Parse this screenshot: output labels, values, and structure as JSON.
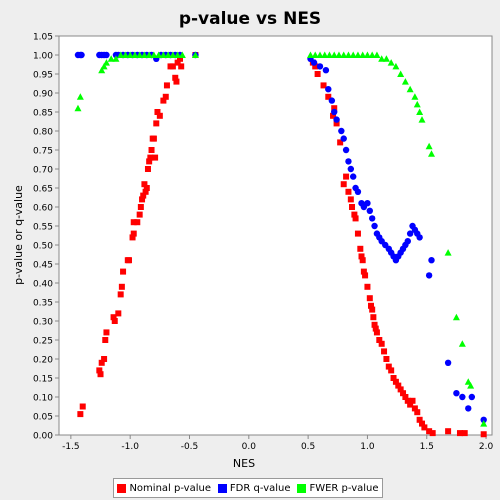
{
  "chart_data": {
    "type": "scatter",
    "title": "p-value vs NES",
    "xlabel": "NES",
    "ylabel": "p-value or q-value",
    "xlim": [
      -1.6,
      2.05
    ],
    "ylim": [
      0.0,
      1.05
    ],
    "xticks": [
      "-1.5",
      "-1.0",
      "-0.5",
      "0.0",
      "0.5",
      "1.0",
      "1.5",
      "2.0"
    ],
    "yticks": [
      "0.00",
      "0.05",
      "0.10",
      "0.15",
      "0.20",
      "0.25",
      "0.30",
      "0.35",
      "0.40",
      "0.45",
      "0.50",
      "0.55",
      "0.60",
      "0.65",
      "0.70",
      "0.75",
      "0.80",
      "0.85",
      "0.90",
      "0.95",
      "1.00",
      "1.05"
    ],
    "grid": false,
    "legend_position": "bottom",
    "series": [
      {
        "name": "Nominal p-value",
        "color": "#ff0000",
        "marker": "square",
        "points": [
          [
            -1.42,
            0.055
          ],
          [
            -1.4,
            0.075
          ],
          [
            -1.26,
            0.17
          ],
          [
            -1.25,
            0.16
          ],
          [
            -1.24,
            0.19
          ],
          [
            -1.22,
            0.2
          ],
          [
            -1.21,
            0.25
          ],
          [
            -1.2,
            0.27
          ],
          [
            -1.14,
            0.31
          ],
          [
            -1.13,
            0.3
          ],
          [
            -1.1,
            0.32
          ],
          [
            -1.08,
            0.37
          ],
          [
            -1.07,
            0.39
          ],
          [
            -1.06,
            0.43
          ],
          [
            -1.02,
            0.46
          ],
          [
            -1.01,
            0.46
          ],
          [
            -0.98,
            0.52
          ],
          [
            -0.97,
            0.53
          ],
          [
            -0.97,
            0.56
          ],
          [
            -0.94,
            0.56
          ],
          [
            -0.92,
            0.58
          ],
          [
            -0.91,
            0.6
          ],
          [
            -0.9,
            0.62
          ],
          [
            -0.89,
            0.63
          ],
          [
            -0.88,
            0.66
          ],
          [
            -0.87,
            0.64
          ],
          [
            -0.86,
            0.65
          ],
          [
            -0.85,
            0.7
          ],
          [
            -0.84,
            0.72
          ],
          [
            -0.83,
            0.73
          ],
          [
            -0.82,
            0.75
          ],
          [
            -0.81,
            0.78
          ],
          [
            -0.8,
            0.78
          ],
          [
            -0.79,
            0.73
          ],
          [
            -0.78,
            0.82
          ],
          [
            -0.77,
            0.85
          ],
          [
            -0.75,
            0.84
          ],
          [
            -0.72,
            0.88
          ],
          [
            -0.7,
            0.89
          ],
          [
            -0.69,
            0.92
          ],
          [
            -0.66,
            0.97
          ],
          [
            -0.64,
            0.97
          ],
          [
            -0.62,
            0.94
          ],
          [
            -0.61,
            0.93
          ],
          [
            -0.6,
            0.98
          ],
          [
            -0.58,
            0.99
          ],
          [
            -0.57,
            0.97
          ],
          [
            -0.45,
            1.0
          ],
          [
            0.54,
            0.98
          ],
          [
            0.56,
            0.97
          ],
          [
            0.58,
            0.95
          ],
          [
            0.63,
            0.92
          ],
          [
            0.67,
            0.89
          ],
          [
            0.71,
            0.84
          ],
          [
            0.72,
            0.86
          ],
          [
            0.74,
            0.82
          ],
          [
            0.77,
            0.77
          ],
          [
            0.8,
            0.66
          ],
          [
            0.82,
            0.68
          ],
          [
            0.84,
            0.64
          ],
          [
            0.86,
            0.62
          ],
          [
            0.87,
            0.6
          ],
          [
            0.89,
            0.58
          ],
          [
            0.9,
            0.57
          ],
          [
            0.92,
            0.53
          ],
          [
            0.94,
            0.49
          ],
          [
            0.95,
            0.47
          ],
          [
            0.96,
            0.46
          ],
          [
            0.97,
            0.43
          ],
          [
            0.98,
            0.42
          ],
          [
            1.0,
            0.39
          ],
          [
            1.02,
            0.36
          ],
          [
            1.03,
            0.34
          ],
          [
            1.04,
            0.33
          ],
          [
            1.05,
            0.31
          ],
          [
            1.06,
            0.29
          ],
          [
            1.07,
            0.28
          ],
          [
            1.08,
            0.27
          ],
          [
            1.1,
            0.25
          ],
          [
            1.12,
            0.24
          ],
          [
            1.14,
            0.22
          ],
          [
            1.16,
            0.2
          ],
          [
            1.18,
            0.18
          ],
          [
            1.2,
            0.17
          ],
          [
            1.22,
            0.15
          ],
          [
            1.24,
            0.14
          ],
          [
            1.26,
            0.13
          ],
          [
            1.28,
            0.12
          ],
          [
            1.3,
            0.11
          ],
          [
            1.32,
            0.1
          ],
          [
            1.34,
            0.09
          ],
          [
            1.36,
            0.08
          ],
          [
            1.38,
            0.09
          ],
          [
            1.4,
            0.07
          ],
          [
            1.42,
            0.06
          ],
          [
            1.44,
            0.04
          ],
          [
            1.46,
            0.03
          ],
          [
            1.48,
            0.02
          ],
          [
            1.52,
            0.01
          ],
          [
            1.55,
            0.005
          ],
          [
            1.68,
            0.01
          ],
          [
            1.78,
            0.005
          ],
          [
            1.82,
            0.005
          ],
          [
            1.98,
            0.002
          ]
        ]
      },
      {
        "name": "FDR q-value",
        "color": "#0000ff",
        "marker": "circle",
        "points": [
          [
            -1.44,
            1.0
          ],
          [
            -1.42,
            1.0
          ],
          [
            -1.41,
            1.0
          ],
          [
            -1.26,
            1.0
          ],
          [
            -1.24,
            1.0
          ],
          [
            -1.22,
            1.0
          ],
          [
            -1.2,
            1.0
          ],
          [
            -1.12,
            1.0
          ],
          [
            -1.1,
            1.0
          ],
          [
            -1.06,
            1.0
          ],
          [
            -1.02,
            1.0
          ],
          [
            -0.98,
            1.0
          ],
          [
            -0.94,
            1.0
          ],
          [
            -0.9,
            1.0
          ],
          [
            -0.86,
            1.0
          ],
          [
            -0.82,
            1.0
          ],
          [
            -0.78,
            0.99
          ],
          [
            -0.74,
            1.0
          ],
          [
            -0.7,
            1.0
          ],
          [
            -0.66,
            1.0
          ],
          [
            -0.62,
            1.0
          ],
          [
            -0.58,
            1.0
          ],
          [
            -0.45,
            1.0
          ],
          [
            0.52,
            0.99
          ],
          [
            0.55,
            0.98
          ],
          [
            0.6,
            0.97
          ],
          [
            0.65,
            0.96
          ],
          [
            0.67,
            0.91
          ],
          [
            0.7,
            0.88
          ],
          [
            0.72,
            0.85
          ],
          [
            0.74,
            0.83
          ],
          [
            0.78,
            0.8
          ],
          [
            0.8,
            0.78
          ],
          [
            0.82,
            0.75
          ],
          [
            0.84,
            0.72
          ],
          [
            0.86,
            0.7
          ],
          [
            0.88,
            0.68
          ],
          [
            0.9,
            0.65
          ],
          [
            0.92,
            0.64
          ],
          [
            0.95,
            0.61
          ],
          [
            0.97,
            0.6
          ],
          [
            1.0,
            0.61
          ],
          [
            1.02,
            0.59
          ],
          [
            1.04,
            0.57
          ],
          [
            1.06,
            0.55
          ],
          [
            1.08,
            0.53
          ],
          [
            1.1,
            0.52
          ],
          [
            1.12,
            0.51
          ],
          [
            1.15,
            0.5
          ],
          [
            1.18,
            0.49
          ],
          [
            1.2,
            0.48
          ],
          [
            1.22,
            0.47
          ],
          [
            1.24,
            0.46
          ],
          [
            1.26,
            0.47
          ],
          [
            1.28,
            0.48
          ],
          [
            1.3,
            0.49
          ],
          [
            1.32,
            0.5
          ],
          [
            1.34,
            0.51
          ],
          [
            1.36,
            0.53
          ],
          [
            1.38,
            0.55
          ],
          [
            1.4,
            0.54
          ],
          [
            1.42,
            0.53
          ],
          [
            1.44,
            0.52
          ],
          [
            1.52,
            0.42
          ],
          [
            1.54,
            0.46
          ],
          [
            1.68,
            0.19
          ],
          [
            1.75,
            0.11
          ],
          [
            1.8,
            0.1
          ],
          [
            1.85,
            0.07
          ],
          [
            1.88,
            0.1
          ],
          [
            1.98,
            0.04
          ]
        ]
      },
      {
        "name": "FWER p-value",
        "color": "#00ff00",
        "marker": "triangle",
        "points": [
          [
            -1.44,
            0.86
          ],
          [
            -1.42,
            0.89
          ],
          [
            -1.24,
            0.96
          ],
          [
            -1.22,
            0.97
          ],
          [
            -1.2,
            0.98
          ],
          [
            -1.16,
            0.99
          ],
          [
            -1.12,
            0.99
          ],
          [
            -1.08,
            1.0
          ],
          [
            -1.04,
            1.0
          ],
          [
            -1.0,
            1.0
          ],
          [
            -0.96,
            1.0
          ],
          [
            -0.92,
            1.0
          ],
          [
            -0.88,
            1.0
          ],
          [
            -0.84,
            1.0
          ],
          [
            -0.8,
            1.0
          ],
          [
            -0.76,
            1.0
          ],
          [
            -0.72,
            1.0
          ],
          [
            -0.68,
            1.0
          ],
          [
            -0.64,
            1.0
          ],
          [
            -0.6,
            1.0
          ],
          [
            -0.56,
            1.0
          ],
          [
            -0.45,
            1.0
          ],
          [
            0.52,
            1.0
          ],
          [
            0.56,
            1.0
          ],
          [
            0.6,
            1.0
          ],
          [
            0.64,
            1.0
          ],
          [
            0.68,
            1.0
          ],
          [
            0.72,
            1.0
          ],
          [
            0.76,
            1.0
          ],
          [
            0.8,
            1.0
          ],
          [
            0.84,
            1.0
          ],
          [
            0.88,
            1.0
          ],
          [
            0.92,
            1.0
          ],
          [
            0.96,
            1.0
          ],
          [
            1.0,
            1.0
          ],
          [
            1.04,
            1.0
          ],
          [
            1.08,
            1.0
          ],
          [
            1.12,
            0.99
          ],
          [
            1.16,
            0.99
          ],
          [
            1.2,
            0.98
          ],
          [
            1.24,
            0.97
          ],
          [
            1.28,
            0.95
          ],
          [
            1.32,
            0.93
          ],
          [
            1.36,
            0.91
          ],
          [
            1.4,
            0.89
          ],
          [
            1.42,
            0.87
          ],
          [
            1.44,
            0.85
          ],
          [
            1.46,
            0.83
          ],
          [
            1.52,
            0.76
          ],
          [
            1.54,
            0.74
          ],
          [
            1.68,
            0.48
          ],
          [
            1.75,
            0.31
          ],
          [
            1.8,
            0.24
          ],
          [
            1.85,
            0.14
          ],
          [
            1.87,
            0.13
          ],
          [
            1.98,
            0.03
          ]
        ]
      }
    ]
  }
}
